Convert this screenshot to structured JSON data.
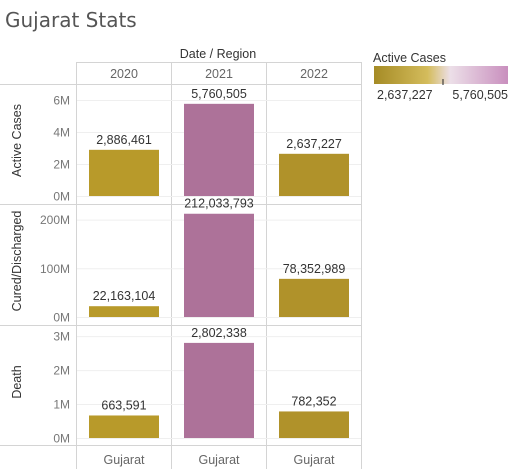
{
  "chart_data": {
    "type": "bar",
    "title": "Gujarat Stats",
    "column_header": "Date / Region",
    "categories": [
      "2020",
      "2021",
      "2022"
    ],
    "region_labels": [
      "Gujarat",
      "Gujarat",
      "Gujarat"
    ],
    "rows": [
      {
        "name": "Active Cases",
        "values": [
          2886461,
          5760505,
          2637227
        ],
        "value_labels": [
          "2,886,461",
          "5,760,505",
          "2,637,227"
        ],
        "ylim": [
          0,
          7000000
        ],
        "ticks": [
          {
            "value": 0,
            "label": "0M"
          },
          {
            "value": 2000000,
            "label": "2M"
          },
          {
            "value": 4000000,
            "label": "4M"
          },
          {
            "value": 6000000,
            "label": "6M"
          }
        ]
      },
      {
        "name": "Cured/Discharged",
        "values": [
          22163104,
          212033793,
          78352989
        ],
        "value_labels": [
          "22,163,104",
          "212,033,793",
          "78,352,989"
        ],
        "ylim": [
          0,
          230000000
        ],
        "ticks": [
          {
            "value": 0,
            "label": "0M"
          },
          {
            "value": 100000000,
            "label": "100M"
          },
          {
            "value": 200000000,
            "label": "200M"
          }
        ]
      },
      {
        "name": "Death",
        "values": [
          663591,
          2802338,
          782352
        ],
        "value_labels": [
          "663,591",
          "2,802,338",
          "782,352"
        ],
        "ylim": [
          0,
          3300000
        ],
        "ticks": [
          {
            "value": 0,
            "label": "0M"
          },
          {
            "value": 1000000,
            "label": "1M"
          },
          {
            "value": 2000000,
            "label": "2M"
          },
          {
            "value": 3000000,
            "label": "3M"
          }
        ]
      }
    ],
    "bar_colors": [
      "#b89a2a",
      "#ad7299",
      "#b0922a"
    ],
    "legend": {
      "title": "Active Cases",
      "min_label": "2,637,227",
      "max_label": "5,760,505",
      "gradient_colors": [
        "#a58b25",
        "#d4bc5c",
        "#ecdfe8",
        "#c98fbe"
      ]
    }
  }
}
